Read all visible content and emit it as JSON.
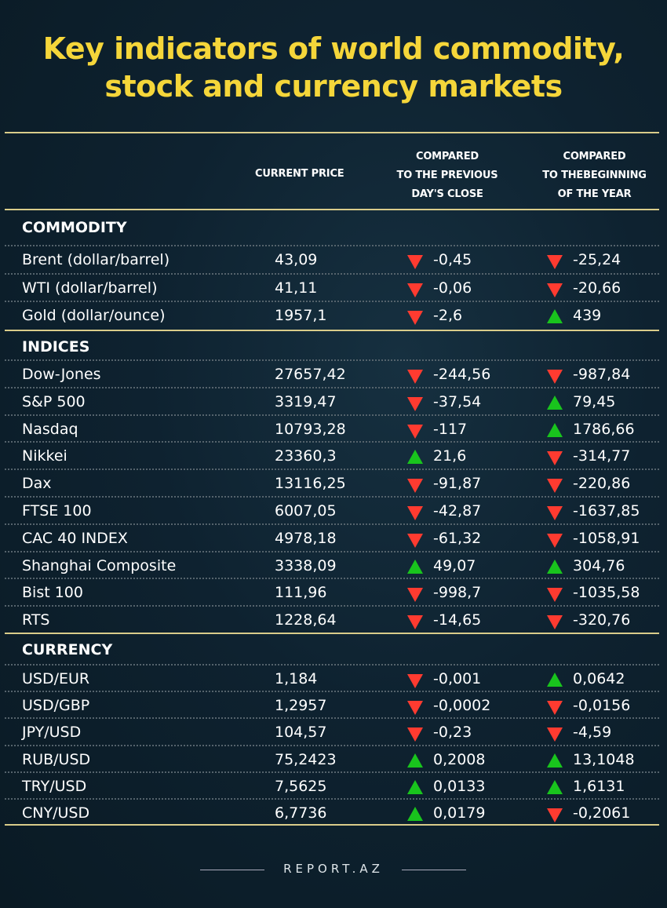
{
  "title_line1": "Key indicators of world commodity,",
  "title_line2": "stock and currency markets",
  "headers": {
    "price": "CURRENT PRICE",
    "prev": [
      "COMPARED",
      "TO THE PREVIOUS",
      "DAY'S CLOSE"
    ],
    "year": [
      "COMPARED",
      "TO THEBEGINNING",
      "OF THE YEAR"
    ]
  },
  "colors": {
    "up": "#19c41d",
    "down": "#ff3b30",
    "title": "#f5d63a"
  },
  "sections": [
    {
      "name": "COMMODITY",
      "rows": [
        [
          "Brent (dollar/barrel)",
          "43,09",
          "down",
          "-0,45",
          "down",
          "-25,24"
        ],
        [
          "WTI (dollar/barrel)",
          "41,11",
          "down",
          "-0,06",
          "down",
          "-20,66"
        ],
        [
          "Gold (dollar/ounce)",
          "1957,1",
          "down",
          "-2,6",
          "up",
          "439"
        ]
      ]
    },
    {
      "name": "INDICES",
      "rows": [
        [
          "Dow-Jones",
          "27657,42",
          "down",
          "-244,56",
          "down",
          "-987,84"
        ],
        [
          "S&P 500",
          "3319,47",
          "down",
          "-37,54",
          "up",
          "79,45"
        ],
        [
          "Nasdaq",
          "10793,28",
          "down",
          "-117",
          "up",
          "1786,66"
        ],
        [
          "Nikkei",
          "23360,3",
          "up",
          "21,6",
          "down",
          "-314,77"
        ],
        [
          "Dax",
          "13116,25",
          "down",
          "-91,87",
          "down",
          "-220,86"
        ],
        [
          "FTSE 100",
          "6007,05",
          "down",
          "-42,87",
          "down",
          "-1637,85"
        ],
        [
          "CAC 40 INDEX",
          "4978,18",
          "down",
          "-61,32",
          "down",
          "-1058,91"
        ],
        [
          "Shanghai Composite",
          "3338,09",
          "up",
          "49,07",
          "up",
          "304,76"
        ],
        [
          "Bist 100",
          "111,96",
          "down",
          "-998,7",
          "down",
          "-1035,58"
        ],
        [
          "RTS",
          "1228,64",
          "down",
          "-14,65",
          "down",
          "-320,76"
        ]
      ]
    },
    {
      "name": "CURRENCY",
      "rows": [
        [
          "USD/EUR",
          "1,184",
          "down",
          "-0,001",
          "up",
          "0,0642"
        ],
        [
          "USD/GBP",
          "1,2957",
          "down",
          "-0,0002",
          "down",
          "-0,0156"
        ],
        [
          "JPY/USD",
          "104,57",
          "down",
          "-0,23",
          "down",
          "-4,59"
        ],
        [
          "RUB/USD",
          "75,2423",
          "up",
          "0,2008",
          "up",
          "13,1048"
        ],
        [
          "TRY/USD",
          "7,5625",
          "up",
          "0,0133",
          "up",
          "1,6131"
        ],
        [
          "CNY/USD",
          "6,7736",
          "up",
          "0,0179",
          "down",
          "-0,2061"
        ]
      ]
    }
  ],
  "footer": "REPORT.AZ"
}
